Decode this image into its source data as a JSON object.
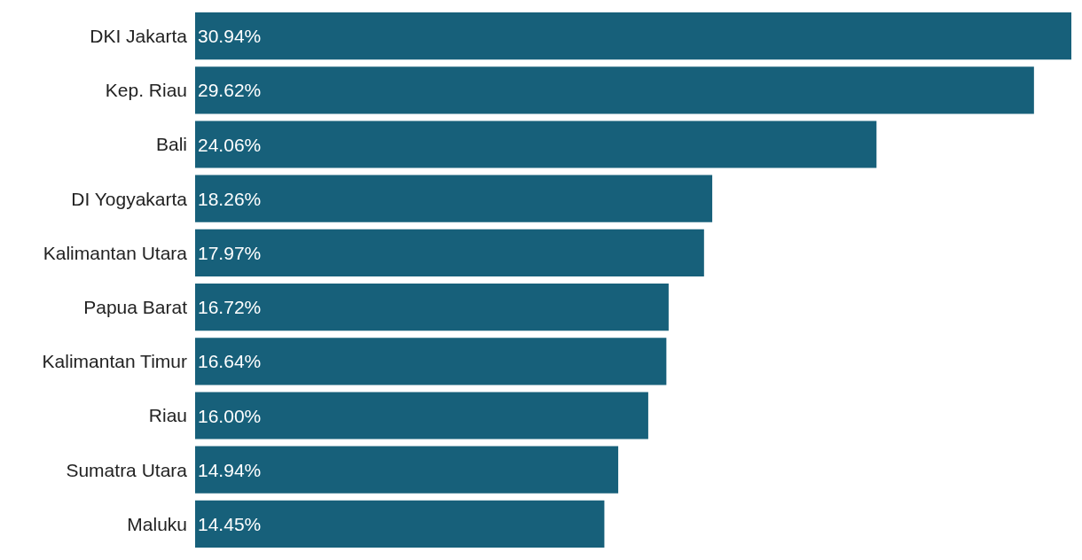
{
  "chart_data": {
    "type": "bar",
    "orientation": "horizontal",
    "categories": [
      "DKI Jakarta",
      "Kep. Riau",
      "Bali",
      "DI Yogyakarta",
      "Kalimantan Utara",
      "Papua Barat",
      "Kalimantan Timur",
      "Riau",
      "Sumatra Utara",
      "Maluku"
    ],
    "values": [
      30.94,
      29.62,
      24.06,
      18.26,
      17.97,
      16.72,
      16.64,
      16.0,
      14.94,
      14.45
    ],
    "value_labels": [
      "30.94%",
      "29.62%",
      "24.06%",
      "18.26%",
      "17.97%",
      "16.72%",
      "16.64%",
      "16.00%",
      "14.94%",
      "14.45%"
    ],
    "color": "#17607a",
    "grid": false,
    "legend": false,
    "tick_labels": "y"
  }
}
